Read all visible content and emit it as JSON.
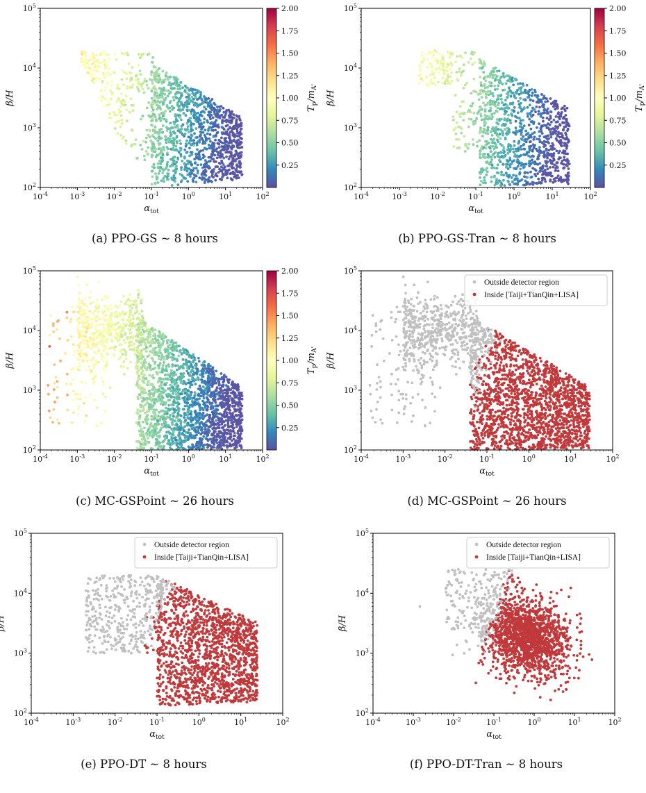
{
  "chart_data": [
    {
      "id": "a",
      "type": "scatter",
      "caption": "(a) PPO-GS ~ 8 hours",
      "xlabel": "α_tot",
      "ylabel": "β/H",
      "xscale": "log",
      "yscale": "log",
      "xlim": [
        0.0001,
        100
      ],
      "ylim": [
        100,
        100000
      ],
      "xticks": [
        "10⁻⁴",
        "10⁻³",
        "10⁻²",
        "10⁻¹",
        "10⁰",
        "10¹",
        "10²"
      ],
      "yticks": [
        "10²",
        "10³",
        "10⁴",
        "10⁵"
      ],
      "color_by": "T_p/m_A'",
      "colorbar": {
        "label": "T_p/m_A'",
        "range": [
          0,
          2.0
        ],
        "ticks": [
          "0.25",
          "0.50",
          "0.75",
          "1.00",
          "1.25",
          "1.50",
          "1.75",
          "2.00"
        ],
        "colormap": "Spectral_r"
      },
      "point_count_approx": 1500,
      "cloud_envelope": {
        "alpha_range": [
          0.0012,
          28
        ],
        "beta_range": [
          110,
          28000
        ]
      }
    },
    {
      "id": "b",
      "type": "scatter",
      "caption": "(b) PPO-GS-Tran ~ 8 hours",
      "xlabel": "α_tot",
      "ylabel": "β/H",
      "xscale": "log",
      "yscale": "log",
      "xlim": [
        0.0001,
        100
      ],
      "ylim": [
        100,
        100000
      ],
      "xticks": [
        "10⁻⁴",
        "10⁻³",
        "10⁻²",
        "10⁻¹",
        "10⁰",
        "10¹",
        "10²"
      ],
      "yticks": [
        "10²",
        "10³",
        "10⁴",
        "10⁵"
      ],
      "color_by": "T_p/m_A'",
      "colorbar": {
        "label": "T_p/m_A'",
        "range": [
          0,
          2.0
        ],
        "ticks": [
          "0.25",
          "0.50",
          "0.75",
          "1.00",
          "1.25",
          "1.50",
          "1.75",
          "2.00"
        ],
        "colormap": "Spectral_r"
      },
      "point_count_approx": 1300,
      "cloud_envelope": {
        "alpha_range": [
          0.003,
          30
        ],
        "beta_range": [
          105,
          36000
        ]
      }
    },
    {
      "id": "c",
      "type": "scatter",
      "caption": "(c) MC-GSPoint ~ 26 hours",
      "xlabel": "α_tot",
      "ylabel": "β/H",
      "xscale": "log",
      "yscale": "log",
      "xlim": [
        0.0001,
        100
      ],
      "ylim": [
        100,
        100000
      ],
      "xticks": [
        "10⁻⁴",
        "10⁻³",
        "10⁻²",
        "10⁻¹",
        "10⁰",
        "10¹",
        "10²"
      ],
      "yticks": [
        "10²",
        "10³",
        "10⁴",
        "10⁵"
      ],
      "color_by": "T_p/m_A'",
      "colorbar": {
        "label": "T_p/m_A'",
        "range": [
          0,
          2.0
        ],
        "ticks": [
          "0.25",
          "0.50",
          "0.75",
          "1.00",
          "1.25",
          "1.50",
          "1.75",
          "2.00"
        ],
        "colormap": "Spectral_r"
      },
      "point_count_approx": 2600,
      "cloud_envelope": {
        "alpha_range": [
          0.00015,
          40
        ],
        "beta_range": [
          100,
          95000
        ]
      }
    },
    {
      "id": "d",
      "type": "scatter",
      "caption": "(d) MC-GSPoint ~ 26 hours",
      "xlabel": "α_tot",
      "ylabel": "β/H",
      "xscale": "log",
      "yscale": "log",
      "xlim": [
        0.0001,
        100
      ],
      "ylim": [
        100,
        100000
      ],
      "xticks": [
        "10⁻⁴",
        "10⁻³",
        "10⁻²",
        "10⁻¹",
        "10⁰",
        "10¹",
        "10²"
      ],
      "yticks": [
        "10²",
        "10³",
        "10⁴",
        "10⁵"
      ],
      "legend": {
        "position": "upper-right",
        "entries": [
          {
            "label": "Outside detector region",
            "color": "#c0c0c0"
          },
          {
            "label": "Inside [Taiji+TianQin+LISA]",
            "color": "#c0393b"
          }
        ]
      },
      "point_count_approx": 2600
    },
    {
      "id": "e",
      "type": "scatter",
      "caption": "(e) PPO-DT ~ 8 hours",
      "xlabel": "α_tot",
      "ylabel": "β/H",
      "xscale": "log",
      "yscale": "log",
      "xlim": [
        0.0001,
        100
      ],
      "ylim": [
        100,
        100000
      ],
      "xticks": [
        "10⁻⁴",
        "10⁻³",
        "10⁻²",
        "10⁻¹",
        "10⁰",
        "10¹",
        "10²"
      ],
      "yticks": [
        "10²",
        "10³",
        "10⁴",
        "10⁵"
      ],
      "legend": {
        "position": "upper-right",
        "entries": [
          {
            "label": "Outside detector region",
            "color": "#c0c0c0"
          },
          {
            "label": "Inside [Taiji+TianQin+LISA]",
            "color": "#c0393b"
          }
        ]
      },
      "point_count_approx": 2000
    },
    {
      "id": "f",
      "type": "scatter",
      "caption": "(f) PPO-DT-Tran ~ 8 hours",
      "xlabel": "α_tot",
      "ylabel": "β/H",
      "xscale": "log",
      "yscale": "log",
      "xlim": [
        0.0001,
        100
      ],
      "ylim": [
        100,
        100000
      ],
      "xticks": [
        "10⁻⁴",
        "10⁻³",
        "10⁻²",
        "10⁻¹",
        "10⁰",
        "10¹",
        "10²"
      ],
      "yticks": [
        "10²",
        "10³",
        "10⁴",
        "10⁵"
      ],
      "legend": {
        "position": "upper-right",
        "entries": [
          {
            "label": "Outside detector region",
            "color": "#c0c0c0"
          },
          {
            "label": "Inside [Taiji+TianQin+LISA]",
            "color": "#c0393b"
          }
        ]
      },
      "point_count_approx": 1900
    }
  ]
}
